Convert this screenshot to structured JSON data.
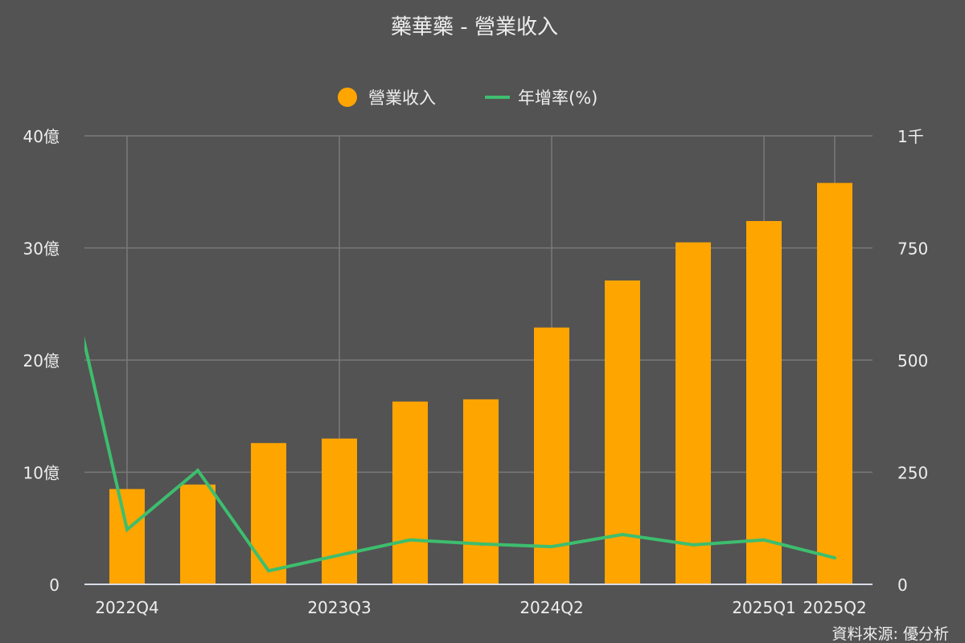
{
  "chart_data": {
    "type": "bar+line",
    "title": "藥華藥 - 營業收入",
    "source": "資料來源: 優分析",
    "categories": [
      "2022Q4",
      "2023Q1",
      "2023Q2",
      "2023Q3",
      "2023Q4",
      "2024Q1",
      "2024Q2",
      "2024Q3",
      "2024Q4",
      "2025Q1",
      "2025Q2"
    ],
    "x_tick_labels": [
      "2022Q4",
      "2023Q3",
      "2024Q2",
      "2025Q1",
      "2025Q2"
    ],
    "legend_placement": "top-center",
    "grid": true,
    "left_axis": {
      "unit": "億",
      "ylim": [
        0,
        40
      ],
      "ticks": [
        "0",
        "10億",
        "20億",
        "30億",
        "40億"
      ]
    },
    "right_axis": {
      "ylim": [
        0,
        1000
      ],
      "ticks": [
        "0",
        "250",
        "500",
        "750",
        "1千"
      ]
    },
    "series": [
      {
        "name": "營業收入",
        "type": "bar",
        "axis": "left",
        "color": "#FFA500",
        "values": [
          8.5,
          8.9,
          12.6,
          13.0,
          16.3,
          16.5,
          22.9,
          27.1,
          30.5,
          32.4,
          35.8
        ]
      },
      {
        "name": "年增率(%)",
        "type": "line",
        "axis": "right",
        "color": "#3DBE6E",
        "leading_value_clipped": 813,
        "values": [
          122,
          254,
          30,
          65,
          99,
          90,
          84,
          111,
          88,
          99,
          59
        ]
      }
    ]
  }
}
